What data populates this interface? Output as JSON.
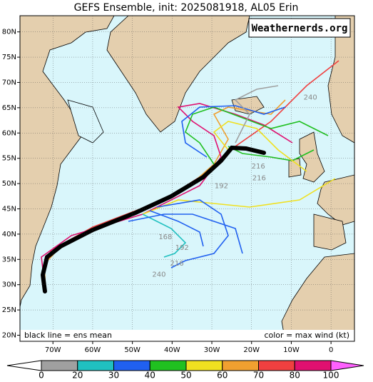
{
  "title": "GEFS Ensemble, init: 2025081918, AL05 Erin",
  "watermark": "Weathernerds.org",
  "map": {
    "lonlim": [
      -78.3,
      5.9
    ],
    "latlim": [
      18.8,
      83.2
    ],
    "lon_ticks": [
      {
        "value": -70,
        "label": "70W"
      },
      {
        "value": -60,
        "label": "60W"
      },
      {
        "value": -50,
        "label": "50W"
      },
      {
        "value": -40,
        "label": "40W"
      },
      {
        "value": -30,
        "label": "30W"
      },
      {
        "value": -20,
        "label": "20W"
      },
      {
        "value": -10,
        "label": "10W"
      },
      0
    ],
    "lat_ticks": [
      {
        "value": 20,
        "label": "20N"
      },
      {
        "value": 25,
        "label": "25N"
      },
      {
        "value": 30,
        "label": "30N"
      },
      {
        "value": 35,
        "label": "35N"
      },
      {
        "value": 40,
        "label": "40N"
      },
      {
        "value": 45,
        "label": "45N"
      },
      {
        "value": 50,
        "label": "50N"
      },
      {
        "value": 55,
        "label": "55N"
      },
      {
        "value": 60,
        "label": "60N"
      },
      {
        "value": 65,
        "label": "65N"
      },
      {
        "value": 70,
        "label": "70N"
      },
      {
        "value": 75,
        "label": "75N"
      },
      {
        "value": 80,
        "label": "80N"
      }
    ],
    "hour_labels": [
      {
        "text": "240",
        "lon": -5.2,
        "lat": 67
      },
      {
        "text": "216",
        "lon": -18.3,
        "lat": 53.4
      },
      {
        "text": "216",
        "lon": -18.1,
        "lat": 51.1
      },
      {
        "text": "192",
        "lon": -27.6,
        "lat": 49.5
      },
      {
        "text": "168",
        "lon": -41.7,
        "lat": 39.4
      },
      {
        "text": "192",
        "lon": -37.5,
        "lat": 37.3
      },
      {
        "text": "216",
        "lon": -38.8,
        "lat": 34.2
      },
      {
        "text": "240",
        "lon": -43.3,
        "lat": 32
      }
    ]
  },
  "mean_note": "black line = ens mean",
  "color_note": "color = max wind (kt)",
  "colorbar": {
    "ticks": [
      0,
      20,
      30,
      40,
      50,
      60,
      70,
      80,
      100
    ],
    "colors": [
      "#a0a0a0",
      "#20c0c0",
      "#2060f0",
      "#20c020",
      "#f0e020",
      "#f0a030",
      "#f04040",
      "#e01070"
    ],
    "under_color": "#ffffff",
    "over_color": "#ff60ff"
  }
}
